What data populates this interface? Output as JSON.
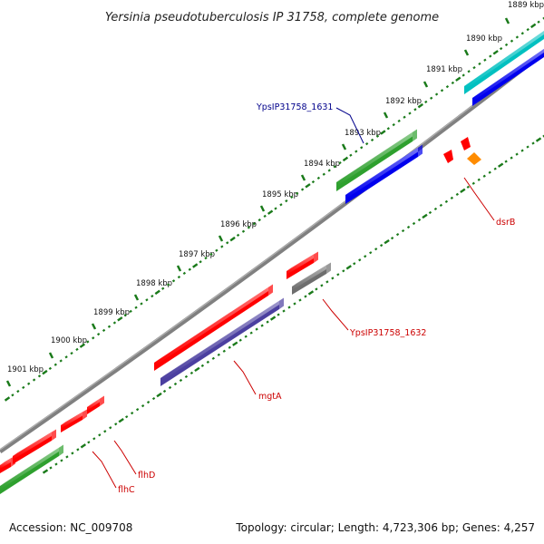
{
  "header": {
    "title": "Yersinia pseudotuberculosis IP 31758, complete genome"
  },
  "footer": {
    "accession": "Accession: NC_009708",
    "summary": "Topology: circular; Length: 4,723,306 bp; Genes: 4,257"
  },
  "ticks": [
    "1889 kbp",
    "1890 kbp",
    "1891 kbp",
    "1892 kbp",
    "1893 kbp",
    "1894 kbp",
    "1895 kbp",
    "1896 kbp",
    "1897 kbp",
    "1898 kbp",
    "1899 kbp",
    "1900 kbp",
    "1901 kbp"
  ],
  "features": {
    "labels": [
      {
        "name": "label-YpsIP31758_1631",
        "text": "YpsIP31758_1631",
        "color": "#00008b"
      },
      {
        "name": "label-dsrB",
        "text": "dsrB",
        "color": "#cc0000"
      },
      {
        "name": "label-YpsIP31758_1632",
        "text": "YpsIP31758_1632",
        "color": "#cc0000"
      },
      {
        "name": "label-mgtA",
        "text": "mgtA",
        "color": "#cc0000"
      },
      {
        "name": "label-flhD",
        "text": "flhD",
        "color": "#cc0000"
      },
      {
        "name": "label-flhC",
        "text": "flhC",
        "color": "#cc0000"
      }
    ]
  },
  "colors": {
    "backbone": "#808080",
    "tick": "#1a7a1a",
    "gene_red": "#ff0000",
    "gene_green": "#2ea02e",
    "gene_blue": "#0000ee",
    "gene_cyan": "#00c0c0",
    "gene_navy": "#4b3fa0",
    "gene_gray": "#6e6e6e",
    "gene_orange": "#ff8c00"
  }
}
